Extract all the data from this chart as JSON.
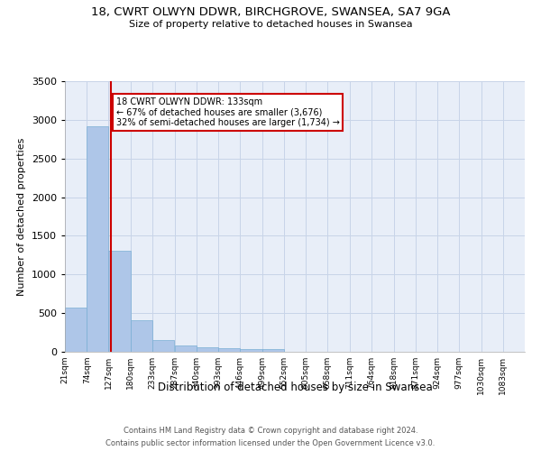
{
  "title_line1": "18, CWRT OLWYN DDWR, BIRCHGROVE, SWANSEA, SA7 9GA",
  "title_line2": "Size of property relative to detached houses in Swansea",
  "xlabel": "Distribution of detached houses by size in Swansea",
  "ylabel": "Number of detached properties",
  "bin_labels": [
    "21sqm",
    "74sqm",
    "127sqm",
    "180sqm",
    "233sqm",
    "287sqm",
    "340sqm",
    "393sqm",
    "446sqm",
    "499sqm",
    "552sqm",
    "605sqm",
    "658sqm",
    "711sqm",
    "764sqm",
    "818sqm",
    "871sqm",
    "924sqm",
    "977sqm",
    "1030sqm",
    "1083sqm"
  ],
  "bin_edges": [
    21,
    74,
    127,
    180,
    233,
    287,
    340,
    393,
    446,
    499,
    552,
    605,
    658,
    711,
    764,
    818,
    871,
    924,
    977,
    1030,
    1083
  ],
  "bar_heights": [
    570,
    2920,
    1310,
    410,
    155,
    80,
    55,
    50,
    40,
    30,
    0,
    0,
    0,
    0,
    0,
    0,
    0,
    0,
    0,
    0
  ],
  "bar_color": "#aec6e8",
  "bar_edge_color": "#7aafd4",
  "grid_color": "#c8d4e8",
  "bg_color": "#e8eef8",
  "property_size": 133,
  "marker_line_color": "#cc0000",
  "annotation_text": "18 CWRT OLWYN DDWR: 133sqm\n← 67% of detached houses are smaller (3,676)\n32% of semi-detached houses are larger (1,734) →",
  "annotation_box_color": "#cc0000",
  "ylim": [
    0,
    3500
  ],
  "yticks": [
    0,
    500,
    1000,
    1500,
    2000,
    2500,
    3000,
    3500
  ],
  "footer_line1": "Contains HM Land Registry data © Crown copyright and database right 2024.",
  "footer_line2": "Contains public sector information licensed under the Open Government Licence v3.0."
}
